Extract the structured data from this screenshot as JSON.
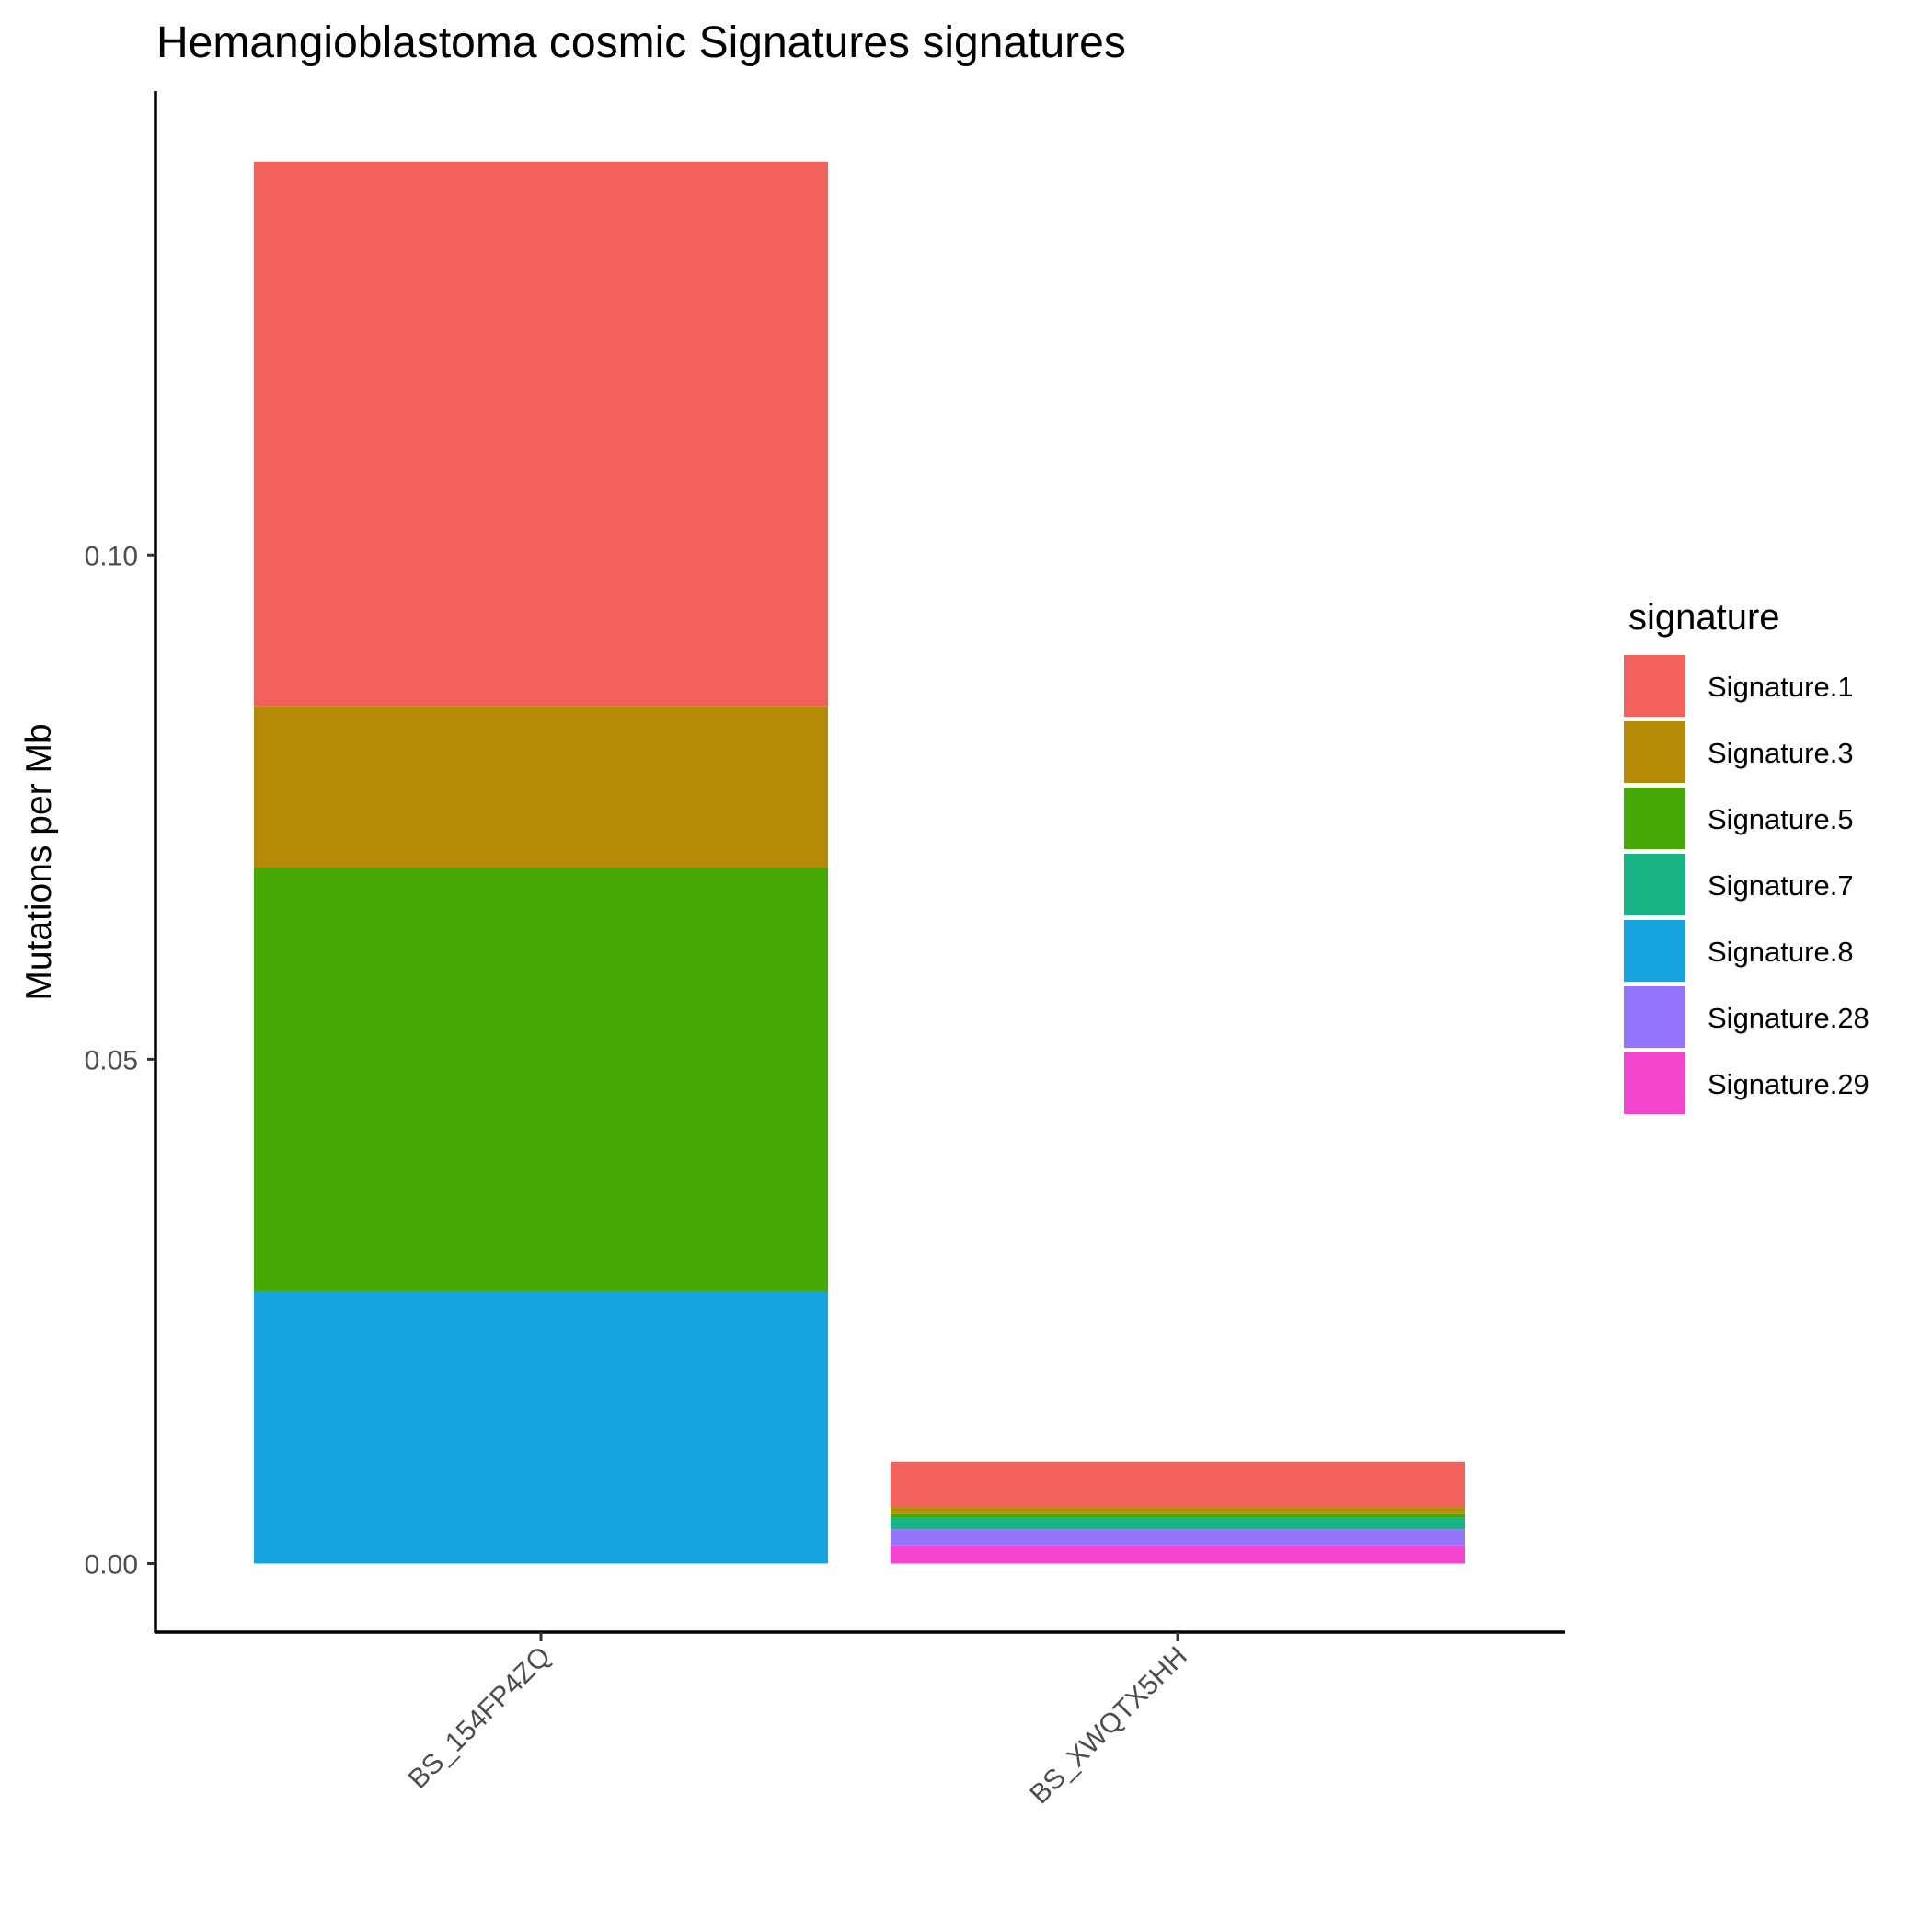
{
  "chart_data": {
    "type": "bar",
    "stacked": true,
    "title": "Hemangioblastoma cosmic Signatures signatures",
    "xlabel": "",
    "ylabel": "Mutations per Mb",
    "ylim": [
      -0.0068,
      0.146
    ],
    "yticks": [
      0.0,
      0.05,
      0.1
    ],
    "ytick_labels": [
      "0.00",
      "0.05",
      "0.10"
    ],
    "grid": false,
    "legend_position": "right",
    "legend_title": "signature",
    "categories": [
      "BS_154FP4ZQ",
      "BS_XWQTX5HH"
    ],
    "series": [
      {
        "name": "Signature.1",
        "color": "#F2615C",
        "values": [
          0.054,
          0.0045
        ]
      },
      {
        "name": "Signature.3",
        "color": "#B58A07",
        "values": [
          0.016,
          0.0007
        ]
      },
      {
        "name": "Signature.5",
        "color": "#45A804",
        "values": [
          0.042,
          0.0003
        ]
      },
      {
        "name": "Signature.7",
        "color": "#17B585",
        "values": [
          0.0,
          0.0012
        ]
      },
      {
        "name": "Signature.8",
        "color": "#17A5E2",
        "values": [
          0.027,
          0.0
        ]
      },
      {
        "name": "Signature.28",
        "color": "#9474FA",
        "values": [
          0.0,
          0.0016
        ]
      },
      {
        "name": "Signature.29",
        "color": "#F544CE",
        "values": [
          0.0,
          0.0018
        ]
      }
    ]
  }
}
